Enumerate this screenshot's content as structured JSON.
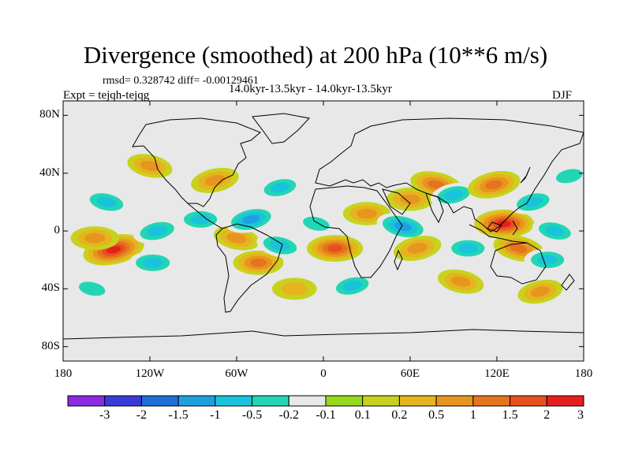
{
  "figure": {
    "title": "Divergence (smoothed) at 200 hPa (10**6 m/s)",
    "stats_line": "rmsd= 0.328742  diff= -0.00129461",
    "period_line": "14.0kyr-13.5kyr - 14.0kyr-13.5kyr",
    "experiment_line": "Expt = tejqh-tejqg",
    "season": "DJF"
  },
  "map": {
    "projection": "cylindrical equidistant",
    "lon_range": [
      -180,
      180
    ],
    "lat_range": [
      -90,
      90
    ],
    "background_color": "#e8e8e8",
    "lat_ticks": [
      {
        "value": 80,
        "label": "80N"
      },
      {
        "value": 40,
        "label": "40N"
      },
      {
        "value": 0,
        "label": "0"
      },
      {
        "value": -40,
        "label": "40S"
      },
      {
        "value": -80,
        "label": "80S"
      }
    ],
    "lon_ticks": [
      {
        "value": -180,
        "label": "180"
      },
      {
        "value": -120,
        "label": "120W"
      },
      {
        "value": -60,
        "label": "60W"
      },
      {
        "value": 0,
        "label": "0"
      },
      {
        "value": 60,
        "label": "60E"
      },
      {
        "value": 120,
        "label": "120E"
      },
      {
        "value": 180,
        "label": "180"
      }
    ]
  },
  "colorbar": {
    "colors": [
      "#8a2be2",
      "#3a3ad8",
      "#1e6fd8",
      "#1e9fe0",
      "#19c3dc",
      "#22d6b4",
      "#e8e8e8",
      "#96d81e",
      "#c8d21e",
      "#e6b41e",
      "#e6961e",
      "#e6731e",
      "#e6501e",
      "#e61e1e"
    ],
    "labels": [
      "-3",
      "-2",
      "-1.5",
      "-1",
      "-0.5",
      "-0.2",
      "-0.1",
      "0.1",
      "0.2",
      "0.5",
      "1",
      "1.5",
      "2",
      "3"
    ]
  },
  "chart_data": {
    "type": "heatmap",
    "title": "Divergence (smoothed) at 200 hPa (10**6 m/s)",
    "variable": "200 hPa divergence difference (smoothed)",
    "units": "10**6 m/s",
    "experiment": "tejqh-tejqg",
    "season": "DJF",
    "rmsd": 0.328742,
    "diff": -0.00129461,
    "contour_levels": [
      -3,
      -2,
      -1.5,
      -1,
      -0.5,
      -0.2,
      -0.1,
      0.1,
      0.2,
      0.5,
      1,
      1.5,
      2,
      3
    ],
    "anomaly_features": [
      {
        "lon": -145,
        "lat": -13,
        "value": 2.2
      },
      {
        "lon": -158,
        "lat": -5,
        "value": 0.8
      },
      {
        "lon": -150,
        "lat": 20,
        "value": -0.7
      },
      {
        "lon": -115,
        "lat": 0,
        "value": -0.8
      },
      {
        "lon": -118,
        "lat": -22,
        "value": -0.7
      },
      {
        "lon": -120,
        "lat": 45,
        "value": 0.5
      },
      {
        "lon": -75,
        "lat": 35,
        "value": 0.8
      },
      {
        "lon": -85,
        "lat": 8,
        "value": -0.6
      },
      {
        "lon": -60,
        "lat": -5,
        "value": 0.6
      },
      {
        "lon": -50,
        "lat": 8,
        "value": -1.2
      },
      {
        "lon": -45,
        "lat": -22,
        "value": 1.0
      },
      {
        "lon": -30,
        "lat": -10,
        "value": -0.7
      },
      {
        "lon": -30,
        "lat": 30,
        "value": -0.5
      },
      {
        "lon": 8,
        "lat": -12,
        "value": 1.6
      },
      {
        "lon": -5,
        "lat": 5,
        "value": -0.4
      },
      {
        "lon": 20,
        "lat": -38,
        "value": -0.6
      },
      {
        "lon": 30,
        "lat": 12,
        "value": 0.7
      },
      {
        "lon": 55,
        "lat": 3,
        "value": -1.3
      },
      {
        "lon": 65,
        "lat": -12,
        "value": 0.8
      },
      {
        "lon": 60,
        "lat": 22,
        "value": 0.7
      },
      {
        "lon": 78,
        "lat": 32,
        "value": 1.2
      },
      {
        "lon": 90,
        "lat": 25,
        "value": -0.6
      },
      {
        "lon": 100,
        "lat": -12,
        "value": -0.6
      },
      {
        "lon": 95,
        "lat": -35,
        "value": 0.6
      },
      {
        "lon": 118,
        "lat": 32,
        "value": 1.3
      },
      {
        "lon": 125,
        "lat": 5,
        "value": 2.0
      },
      {
        "lon": 135,
        "lat": -12,
        "value": 1.1
      },
      {
        "lon": 145,
        "lat": 20,
        "value": -0.6
      },
      {
        "lon": 155,
        "lat": -20,
        "value": -0.6
      },
      {
        "lon": 160,
        "lat": 0,
        "value": -0.5
      },
      {
        "lon": 170,
        "lat": 38,
        "value": -0.4
      },
      {
        "lon": -20,
        "lat": -40,
        "value": 0.4
      },
      {
        "lon": -160,
        "lat": -40,
        "value": -0.4
      },
      {
        "lon": 150,
        "lat": -42,
        "value": 0.5
      }
    ]
  }
}
